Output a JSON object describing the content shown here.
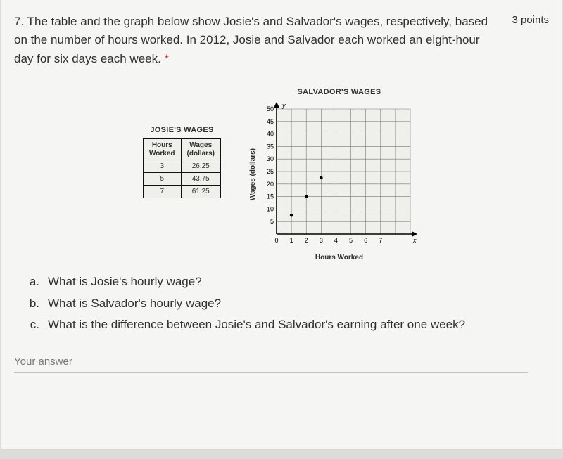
{
  "question": {
    "number_prefix": "7.",
    "text": "The table and the graph below show Josie's and Salvador's wages, respectively, based on the number of hours worked. In 2012, Josie and Salvador each worked an eight-hour day for six days each week.",
    "required_mark": "*",
    "points": "3 points"
  },
  "table": {
    "title": "JOSIE'S WAGES",
    "headers": {
      "col1_l1": "Hours",
      "col1_l2": "Worked",
      "col2_l1": "Wages",
      "col2_l2": "(dollars)"
    },
    "rows": [
      {
        "hours": "3",
        "wages": "26.25"
      },
      {
        "hours": "5",
        "wages": "43.75"
      },
      {
        "hours": "7",
        "wages": "61.25"
      }
    ]
  },
  "chart": {
    "title": "SALVADOR'S WAGES",
    "ylabel": "Wages (dollars)",
    "xlabel": "Hours Worked",
    "y_ticks": [
      0,
      5,
      10,
      15,
      20,
      25,
      30,
      35,
      40,
      45,
      50
    ],
    "x_ticks": [
      0,
      1,
      2,
      3,
      4,
      5,
      6,
      7
    ],
    "x_extra_cols": 2,
    "grid_color": "#777",
    "bg": "#efefec",
    "axis_glyph_y": "y",
    "axis_glyph_x": "x",
    "points": [
      {
        "x": 1,
        "y": 7.5
      },
      {
        "x": 2,
        "y": 15
      },
      {
        "x": 3,
        "y": 22.5
      }
    ],
    "marker_color": "#000",
    "marker_radius": 2.3
  },
  "subs": {
    "a": {
      "letter": "a.",
      "text": "What is Josie's hourly wage?"
    },
    "b": {
      "letter": "b.",
      "text": "What is Salvador's hourly wage?"
    },
    "c": {
      "letter": "c.",
      "text": "What is the difference between Josie's and Salvador's earning after one week?"
    }
  },
  "answer_label": "Your answer"
}
